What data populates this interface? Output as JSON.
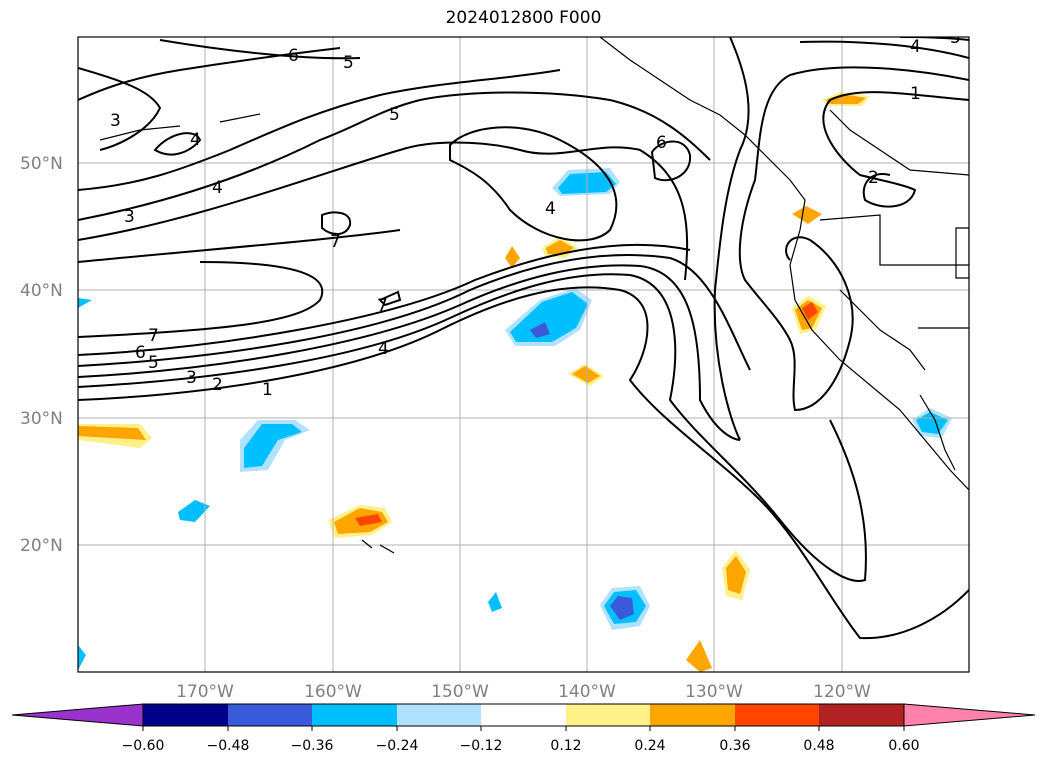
{
  "title": "2024012800 F000",
  "lat_labels": [
    "50°N",
    "40°N",
    "30°N",
    "20°N"
  ],
  "lon_labels": [
    "170°W",
    "160°W",
    "150°W",
    "140°W",
    "130°W",
    "120°W"
  ],
  "colorbar": {
    "ticks": [
      "−0.60",
      "−0.48",
      "−0.36",
      "−0.24",
      "−0.12",
      "0.12",
      "0.24",
      "0.36",
      "0.48",
      "0.60"
    ],
    "colors": [
      "#9a32cd",
      "#00008b",
      "#3a5bd9",
      "#00bfff",
      "#b0e2ff",
      "#ffffff",
      "#fff08a",
      "#ffa500",
      "#ff4500",
      "#b22222",
      "#ff82ab"
    ]
  },
  "contour_labels": [
    "6",
    "5",
    "3",
    "4",
    "4",
    "3",
    "5",
    "6",
    "4",
    "1",
    "2",
    "4",
    "7",
    "7",
    "7",
    "6",
    "5",
    "3",
    "2",
    "1",
    "4",
    "5"
  ]
}
